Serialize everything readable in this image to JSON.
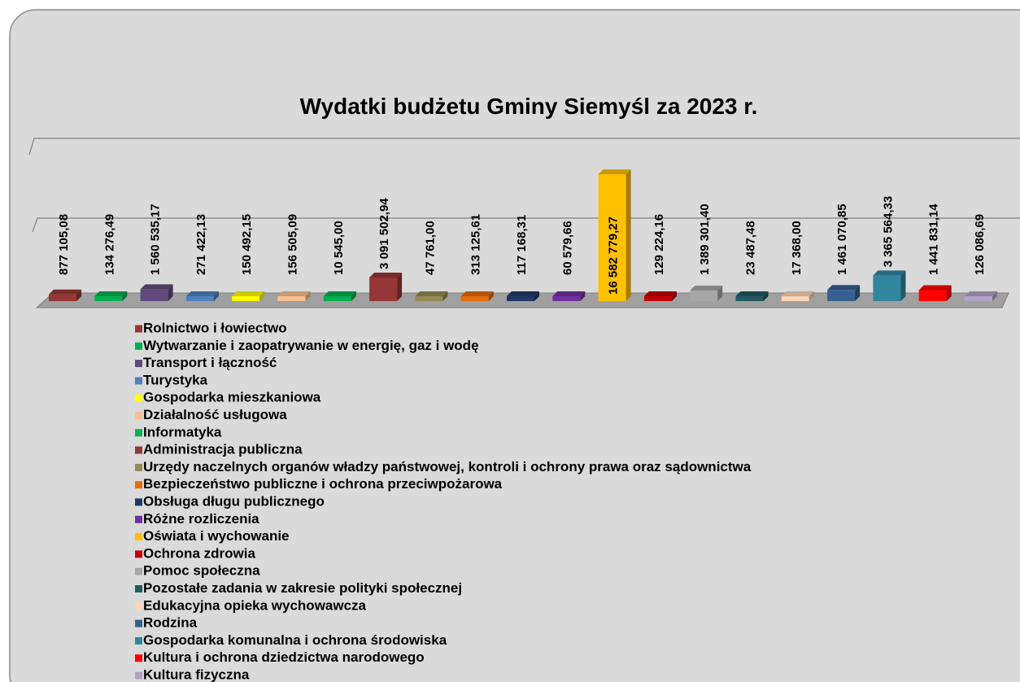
{
  "chart_data": {
    "type": "bar3d",
    "title": "Wydatki budżetu Gminy Siemyśl za 2023 r.",
    "categories": [
      "Rolnictwo i łowiectwo",
      "Wytwarzanie i zaopatrywanie w energię, gaz i wodę",
      "Transport i łączność",
      "Turystyka",
      "Gospodarka mieszkaniowa",
      "Działalność usługowa",
      "Informatyka",
      "Administracja publiczna",
      "Urzędy naczelnych organów władzy państwowej, kontroli i ochrony prawa oraz sądownictwa",
      "Bezpieczeństwo publiczne i ochrona przeciwpożarowa",
      "Obsługa długu publicznego",
      "Różne rozliczenia",
      "Oświata i wychowanie",
      "Ochrona zdrowia",
      "Pomoc społeczna",
      "Pozostałe zadania w zakresie polityki społecznej",
      "Edukacyjna opieka wychowawcza",
      "Rodzina",
      "Gospodarka komunalna i ochrona środowiska",
      "Kultura i ochrona dziedzictwa narodowego",
      "Kultura fizyczna"
    ],
    "values": [
      877105.08,
      134276.49,
      1560535.17,
      271422.13,
      150492.15,
      156505.09,
      10545.0,
      3091502.94,
      47761.0,
      313125.61,
      117168.31,
      60579.66,
      16582779.27,
      129224.16,
      1389301.4,
      23487.48,
      17368.0,
      1461070.85,
      3365564.33,
      1441831.14,
      126086.69
    ],
    "value_labels": [
      "877 105,08",
      "134 276,49",
      "1 560 535,17",
      "271 422,13",
      "150 492,15",
      "156 505,09",
      "10 545,00",
      "3 091 502,94",
      "47 761,00",
      "313 125,61",
      "117 168,31",
      "60 579,66",
      "16 582 779,27",
      "129 224,16",
      "1 389 301,40",
      "23 487,48",
      "17 368,00",
      "1 461 070,85",
      "3 365 564,33",
      "1 441 831,14",
      "126 086,69"
    ],
    "colors": [
      "#953735",
      "#00b050",
      "#604a7b",
      "#4f81bd",
      "#ffff00",
      "#fac090",
      "#00b050",
      "#953735",
      "#948a54",
      "#e46c0a",
      "#1f3864",
      "#7030a0",
      "#ffc000",
      "#c00000",
      "#a6a6a6",
      "#215a60",
      "#fcd5b5",
      "#366092",
      "#31859c",
      "#ff0000",
      "#b3a2c7"
    ],
    "ylim": [
      0,
      20000000
    ]
  }
}
